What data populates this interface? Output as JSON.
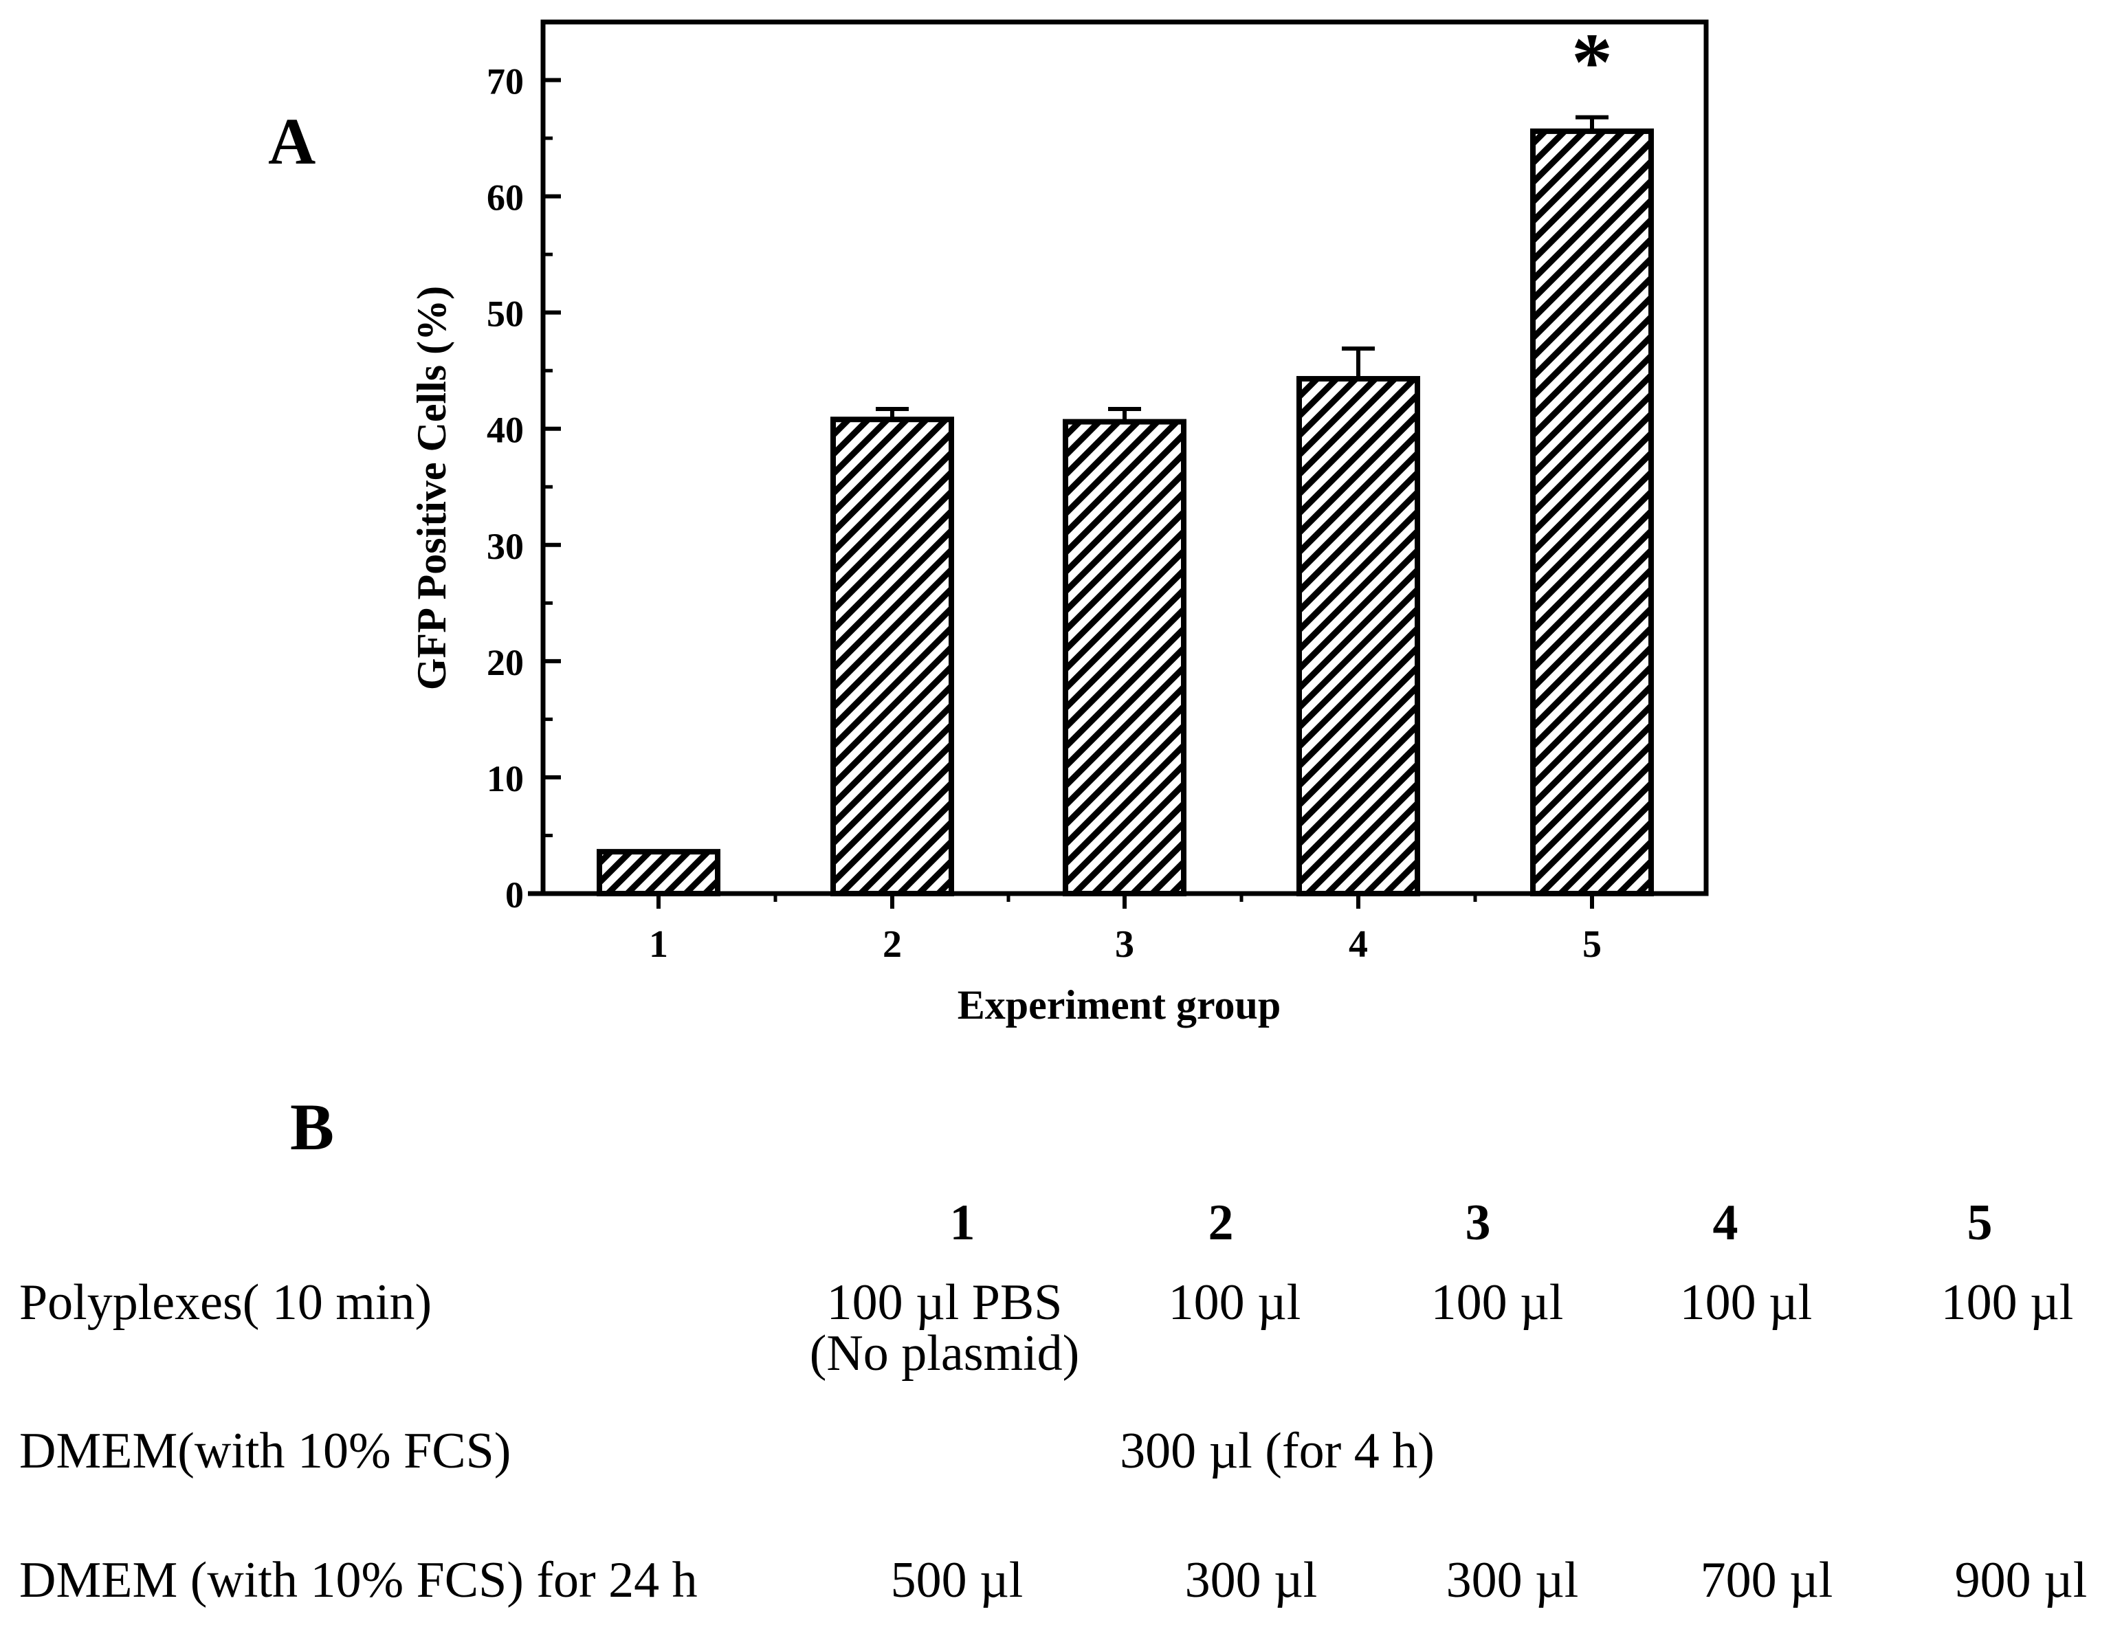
{
  "panels": {
    "a_label": "A",
    "b_label": "B"
  },
  "chart_data": {
    "type": "bar",
    "title": "",
    "xlabel": "Experiment group",
    "ylabel": "GFP Positive Cells (%)",
    "categories": [
      "1",
      "2",
      "3",
      "4",
      "5"
    ],
    "values": [
      3.6,
      40.8,
      40.6,
      44.3,
      65.6
    ],
    "errors": [
      0.0,
      0.9,
      1.1,
      2.6,
      1.2
    ],
    "ylim": [
      0,
      75
    ],
    "yticks": [
      0,
      10,
      20,
      30,
      40,
      50,
      60,
      70
    ],
    "ytick_labels": [
      "0",
      "10",
      "20",
      "30",
      "40",
      "50",
      "60",
      "70"
    ],
    "fill": "diagonal hatch",
    "significance": {
      "group": "5",
      "marker": "*"
    },
    "colors": {
      "bar_edge": "#000000",
      "hatch": "#000000",
      "background": "#ffffff"
    }
  },
  "table": {
    "columns": [
      "1",
      "2",
      "3",
      "4",
      "5"
    ],
    "rows": [
      {
        "label": "Polyplexes( 10 min)",
        "cells": [
          "100 µl PBS",
          "100 µl",
          "100 µl",
          "100 µl",
          "100 µl"
        ],
        "note": "(No plasmid)"
      },
      {
        "label": "DMEM(with 10% FCS)",
        "span_value": "300 µl (for 4 h)"
      },
      {
        "label": "DMEM (with 10% FCS) for 24 h",
        "cells": [
          "500 µl",
          "300 µl",
          "300 µl",
          "700 µl",
          "900 µl"
        ]
      }
    ]
  }
}
